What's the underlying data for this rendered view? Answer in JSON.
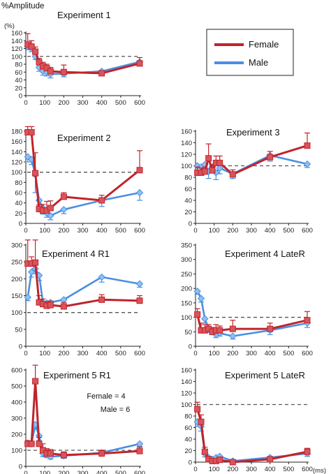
{
  "figure": {
    "ylabel": "%Amplitude",
    "unit_y": "(%)",
    "unit_x": "(ms)"
  },
  "legend": {
    "entries": [
      {
        "name": "Female",
        "color": "#c0232b"
      },
      {
        "name": "Male",
        "color": "#4a8fe0"
      }
    ]
  },
  "colors": {
    "female": "#c0232b",
    "male": "#4a8fe0",
    "reference": "#555555"
  },
  "chart_data": [
    {
      "type": "line",
      "title": "Experiment 1",
      "x": [
        10,
        30,
        50,
        70,
        90,
        110,
        130,
        200,
        400,
        600
      ],
      "xlim": [
        0,
        600
      ],
      "xticks": [
        0,
        100,
        200,
        300,
        400,
        500,
        600
      ],
      "ylim": [
        0,
        160
      ],
      "yticks": [
        0,
        20,
        40,
        60,
        80,
        100,
        120,
        140,
        160
      ],
      "reference_line": 100,
      "series": [
        {
          "name": "Female",
          "values": [
            130,
            125,
            112,
            85,
            75,
            70,
            62,
            60,
            57,
            82
          ],
          "error": [
            28,
            15,
            12,
            10,
            10,
            10,
            10,
            18,
            6,
            15
          ]
        },
        {
          "name": "Male",
          "values": [
            125,
            120,
            100,
            72,
            62,
            60,
            55,
            56,
            62,
            86
          ],
          "error": [
            8,
            8,
            8,
            10,
            10,
            10,
            10,
            8,
            8,
            8
          ]
        }
      ]
    },
    {
      "type": "line",
      "title": "Experiment 2",
      "x": [
        10,
        30,
        50,
        70,
        90,
        110,
        130,
        200,
        400,
        600
      ],
      "xlim": [
        0,
        600
      ],
      "xticks": [
        0,
        100,
        200,
        300,
        400,
        500,
        600
      ],
      "ylim": [
        0,
        180
      ],
      "yticks": [
        0,
        20,
        40,
        60,
        80,
        100,
        120,
        140,
        160,
        180
      ],
      "reference_line": 100,
      "series": [
        {
          "name": "Female",
          "values": [
            178,
            178,
            98,
            28,
            25,
            25,
            30,
            52,
            45,
            104
          ],
          "error": [
            30,
            18,
            40,
            8,
            12,
            18,
            14,
            8,
            10,
            38
          ]
        },
        {
          "name": "Male",
          "values": [
            130,
            125,
            95,
            45,
            30,
            20,
            15,
            27,
            45,
            60
          ],
          "error": [
            10,
            10,
            35,
            12,
            12,
            8,
            8,
            8,
            12,
            15
          ]
        }
      ]
    },
    {
      "type": "line",
      "title": "Experiment 3",
      "x": [
        10,
        30,
        50,
        70,
        90,
        110,
        130,
        200,
        400,
        600
      ],
      "xlim": [
        0,
        600
      ],
      "xticks": [
        0,
        100,
        200,
        300,
        400,
        500,
        600
      ],
      "ylim": [
        0,
        160
      ],
      "yticks": [
        0,
        20,
        40,
        60,
        80,
        100,
        120,
        140,
        160
      ],
      "reference_line": 100,
      "series": [
        {
          "name": "Female",
          "values": [
            88,
            88,
            90,
            113,
            92,
            105,
            105,
            85,
            115,
            135
          ],
          "error": [
            10,
            8,
            8,
            25,
            10,
            12,
            12,
            8,
            10,
            22
          ]
        },
        {
          "name": "Male",
          "values": [
            100,
            98,
            102,
            90,
            98,
            88,
            96,
            86,
            118,
            103
          ],
          "error": [
            10,
            8,
            8,
            12,
            10,
            12,
            10,
            8,
            10,
            6
          ]
        }
      ]
    },
    {
      "type": "line",
      "title": "Experiment 4  R1",
      "x": [
        10,
        30,
        50,
        70,
        90,
        110,
        130,
        200,
        400,
        600
      ],
      "xlim": [
        0,
        600
      ],
      "xticks": [
        0,
        100,
        200,
        300,
        400,
        500,
        600
      ],
      "ylim": [
        0,
        300
      ],
      "yticks": [
        0,
        50,
        100,
        150,
        200,
        250,
        300
      ],
      "reference_line": 100,
      "series": [
        {
          "name": "Female",
          "values": [
            245,
            245,
            248,
            130,
            125,
            120,
            122,
            118,
            138,
            135
          ],
          "error": [
            100,
            20,
            125,
            20,
            15,
            12,
            12,
            12,
            15,
            15
          ]
        },
        {
          "name": "Male",
          "values": [
            145,
            220,
            230,
            210,
            130,
            128,
            130,
            138,
            205,
            185
          ],
          "error": [
            10,
            15,
            15,
            15,
            12,
            12,
            12,
            12,
            15,
            10
          ]
        }
      ]
    },
    {
      "type": "line",
      "title": "Experiment 4   LateR",
      "x": [
        10,
        30,
        50,
        70,
        90,
        110,
        130,
        200,
        400,
        600
      ],
      "xlim": [
        0,
        600
      ],
      "xticks": [
        0,
        100,
        200,
        300,
        400,
        500,
        600
      ],
      "ylim": [
        0,
        350
      ],
      "yticks": [
        0,
        50,
        100,
        150,
        200,
        250,
        300,
        350
      ],
      "reference_line": 100,
      "series": [
        {
          "name": "Female",
          "values": [
            110,
            55,
            55,
            60,
            50,
            55,
            55,
            60,
            60,
            90
          ],
          "error": [
            20,
            25,
            20,
            15,
            15,
            20,
            15,
            30,
            20,
            30
          ]
        },
        {
          "name": "Male",
          "values": [
            190,
            165,
            95,
            60,
            50,
            40,
            45,
            35,
            55,
            80
          ],
          "error": [
            10,
            12,
            15,
            12,
            10,
            10,
            10,
            10,
            15,
            15
          ]
        }
      ]
    },
    {
      "type": "line",
      "title": "Experiment 5  R1",
      "annotations": [
        "Female = 4",
        "Male = 6"
      ],
      "x": [
        10,
        30,
        50,
        70,
        90,
        110,
        130,
        200,
        400,
        600
      ],
      "xlim": [
        0,
        600
      ],
      "xticks": [
        0,
        100,
        200,
        300,
        400,
        500,
        600
      ],
      "ylim": [
        0,
        600
      ],
      "yticks": [
        0,
        100,
        200,
        300,
        400,
        500,
        600
      ],
      "reference_line": 100,
      "series": [
        {
          "name": "Female",
          "values": [
            140,
            140,
            530,
            140,
            100,
            80,
            80,
            70,
            80,
            95
          ],
          "error": [
            20,
            15,
            150,
            40,
            40,
            30,
            25,
            20,
            20,
            25
          ]
        },
        {
          "name": "Male",
          "values": [
            145,
            140,
            260,
            190,
            80,
            70,
            60,
            65,
            85,
            140
          ],
          "error": [
            10,
            10,
            30,
            30,
            20,
            15,
            15,
            15,
            15,
            15
          ]
        }
      ]
    },
    {
      "type": "line",
      "title": "Experiment 5   LateR",
      "x": [
        10,
        30,
        50,
        70,
        90,
        110,
        130,
        200,
        400,
        600
      ],
      "xlim": [
        0,
        600
      ],
      "xticks": [
        0,
        100,
        200,
        300,
        400,
        500,
        600
      ],
      "ylim": [
        0,
        160
      ],
      "yticks": [
        0,
        20,
        40,
        60,
        80,
        100,
        120,
        140,
        160
      ],
      "reference_line": 100,
      "series": [
        {
          "name": "Female",
          "values": [
            92,
            70,
            18,
            5,
            2,
            2,
            4,
            0,
            5,
            18
          ],
          "error": [
            12,
            12,
            8,
            5,
            4,
            4,
            5,
            3,
            4,
            6
          ]
        },
        {
          "name": "Male",
          "values": [
            70,
            62,
            15,
            8,
            5,
            8,
            10,
            2,
            8,
            15
          ],
          "error": [
            8,
            8,
            6,
            5,
            4,
            5,
            5,
            3,
            4,
            5
          ]
        }
      ]
    }
  ]
}
